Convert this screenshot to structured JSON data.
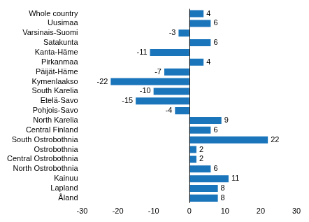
{
  "chart_data": {
    "type": "bar",
    "orientation": "horizontal",
    "categories": [
      "Whole country",
      "Uusimaa",
      "Varsinais-Suomi",
      "Satakunta",
      "Kanta-Häme",
      "Pirkanmaa",
      "Päijät-Häme",
      "Kymenlaakso",
      "South Karelia",
      "Etelä-Savo",
      "Pohjois-Savo",
      "North Karelia",
      "Central Finland",
      "South Ostrobothnia",
      "Ostrobothnia",
      "Central Ostrobothnia",
      "North Ostrobothnia",
      "Kainuu",
      "Lapland",
      "Åland"
    ],
    "values": [
      4,
      6,
      -3,
      6,
      -11,
      4,
      -7,
      -22,
      -10,
      -15,
      -4,
      9,
      6,
      22,
      2,
      2,
      6,
      11,
      8,
      8
    ],
    "color": "#1b75bb",
    "xlim": [
      -30,
      30
    ],
    "xticks": [
      -30,
      -20,
      -10,
      0,
      10,
      20,
      30
    ],
    "grid": false,
    "data_labels": true
  }
}
